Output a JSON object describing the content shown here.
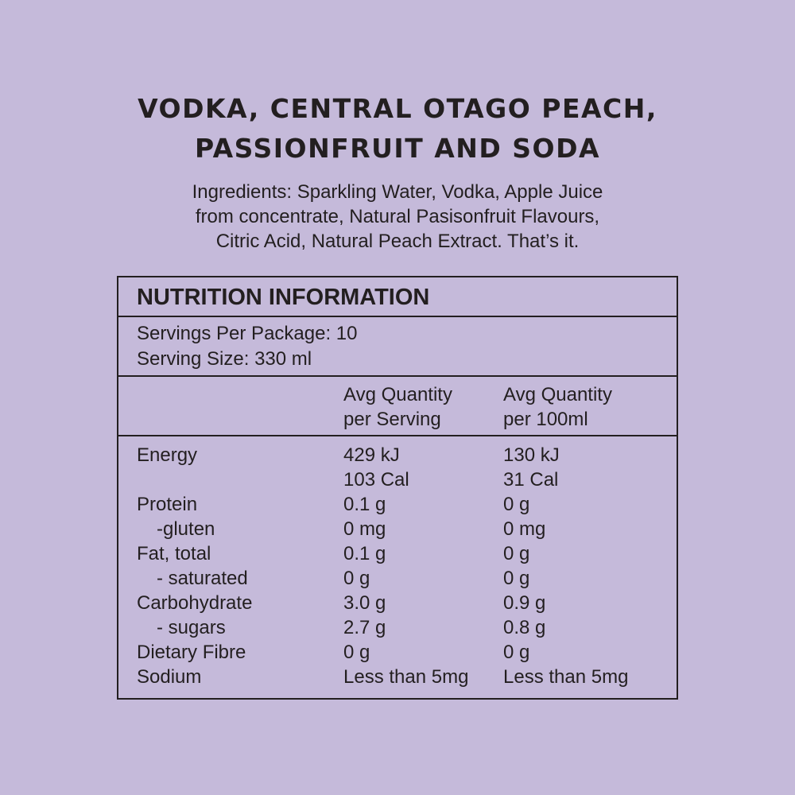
{
  "title": {
    "line1": "Vodka, Central Otago Peach,",
    "line2": "Passionfruit and Soda"
  },
  "ingredients": {
    "line1": "Ingredients: Sparkling Water, Vodka, Apple Juice",
    "line2": "from concentrate, Natural Pasisonfruit Flavours,",
    "line3": "Citric Acid, Natural Peach Extract. That’s it."
  },
  "nutrition": {
    "heading": "NUTRITION INFORMATION",
    "servings_per_package": "Servings Per Package: 10",
    "serving_size": "Serving Size: 330 ml",
    "col_serving_line1": "Avg Quantity",
    "col_serving_line2": "per Serving",
    "col_100ml_line1": "Avg Quantity",
    "col_100ml_line2": "per 100ml",
    "rows": [
      {
        "label": "Energy",
        "serving": "429 kJ",
        "per100": "130 kJ"
      },
      {
        "label": "",
        "serving": "103 Cal",
        "per100": "31 Cal"
      },
      {
        "label": "Protein",
        "serving": "0.1 g",
        "per100": "0 g"
      },
      {
        "label": "-gluten",
        "serving": "0 mg",
        "per100": "0 mg"
      },
      {
        "label": "Fat, total",
        "serving": "0.1 g",
        "per100": "0 g"
      },
      {
        "label": "- saturated",
        "serving": "0 g",
        "per100": "0 g"
      },
      {
        "label": "Carbohydrate",
        "serving": "3.0 g",
        "per100": "0.9 g"
      },
      {
        "label": "- sugars",
        "serving": "2.7 g",
        "per100": "0.8 g"
      },
      {
        "label": "Dietary Fibre",
        "serving": "0 g",
        "per100": "0 g"
      },
      {
        "label": "Sodium",
        "serving": "Less than 5mg",
        "per100": "Less than 5mg"
      }
    ]
  },
  "colors": {
    "background": "#c5bada",
    "text": "#231f20"
  }
}
